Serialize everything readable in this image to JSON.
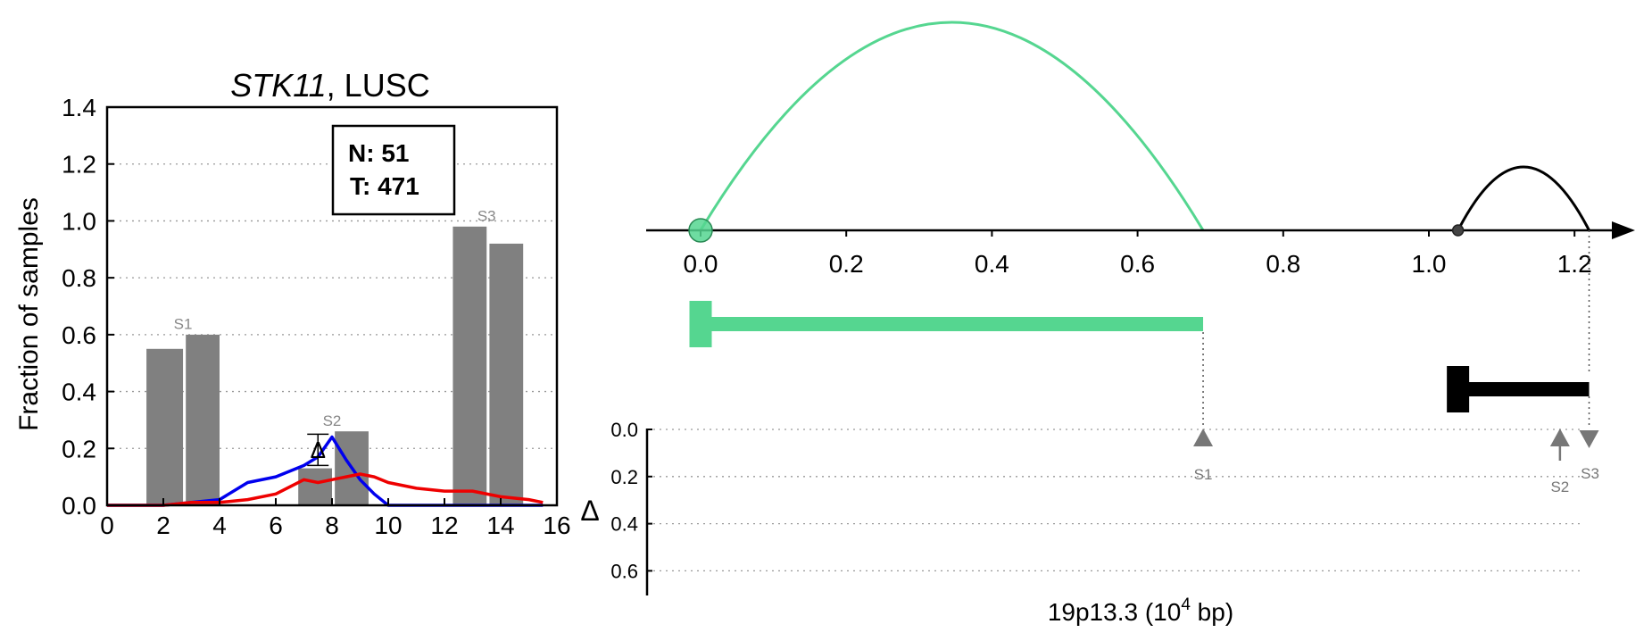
{
  "chart_data": [
    {
      "type": "bar",
      "title_gene": "STK11",
      "title_rest": ", LUSC",
      "ylabel": "Fraction of samples",
      "xlim": [
        0,
        16
      ],
      "ylim": [
        0,
        1.4
      ],
      "x_ticks": [
        "0",
        "2",
        "4",
        "6",
        "8",
        "10",
        "12",
        "14",
        "16"
      ],
      "y_ticks": [
        "0.0",
        "0.2",
        "0.4",
        "0.6",
        "0.8",
        "1.0",
        "1.2",
        "1.4"
      ],
      "grid": "horizontal dotted",
      "legend_box": {
        "line1": "N: 51",
        "line2": "T: 471"
      },
      "bars": [
        {
          "x_left": 1.4,
          "x_right": 2.7,
          "value": 0.55
        },
        {
          "x_left": 2.8,
          "x_right": 4.0,
          "value": 0.6
        },
        {
          "x_left": 6.8,
          "x_right": 8.0,
          "value": 0.13
        },
        {
          "x_left": 8.1,
          "x_right": 9.3,
          "value": 0.26
        },
        {
          "x_left": 12.3,
          "x_right": 13.5,
          "value": 0.98
        },
        {
          "x_left": 13.6,
          "x_right": 14.8,
          "value": 0.92
        }
      ],
      "bar_labels": [
        {
          "text": "S1",
          "x": 2.7,
          "y": 0.62
        },
        {
          "text": "S2",
          "x": 8.0,
          "y": 0.28
        },
        {
          "text": "S3",
          "x": 13.5,
          "y": 1.0
        }
      ],
      "series": [
        {
          "color": "#0000ee",
          "x": [
            0,
            1,
            2,
            3,
            4,
            5,
            6,
            7,
            7.5,
            8,
            8.5,
            9,
            9.5,
            10,
            11,
            12,
            13,
            14,
            15,
            15.5
          ],
          "y": [
            0,
            0,
            0,
            0.01,
            0.02,
            0.08,
            0.1,
            0.14,
            0.17,
            0.24,
            0.16,
            0.09,
            0.04,
            0,
            0,
            0,
            0,
            0,
            0,
            0
          ]
        },
        {
          "color": "#ee0000",
          "x": [
            0,
            1,
            2,
            3,
            4,
            5,
            6,
            7,
            7.5,
            8,
            8.5,
            9,
            9.5,
            10,
            11,
            12,
            13,
            14,
            15,
            15.5
          ],
          "y": [
            0,
            0,
            0,
            0.01,
            0.01,
            0.02,
            0.04,
            0.09,
            0.08,
            0.09,
            0.1,
            0.11,
            0.1,
            0.08,
            0.06,
            0.05,
            0.05,
            0.03,
            0.02,
            0.01
          ]
        }
      ],
      "delta_annotation": {
        "symbol": "Δ",
        "x": 7.5,
        "y_low": 0.14,
        "y_high": 0.25
      }
    },
    {
      "type": "line",
      "xlabel_main": "19p13.3 (10",
      "xlabel_sup": "4",
      "xlabel_tail": " bp)",
      "x_ticks": [
        "0.0",
        "0.2",
        "0.4",
        "0.6",
        "0.8",
        "1.0",
        "1.2"
      ],
      "ylabel": "Δ",
      "delta_ticks": [
        "0.0",
        "0.2",
        "0.4",
        "0.6"
      ],
      "delta_grid": "horizontal dotted",
      "arcs": [
        {
          "from": 0.0,
          "to": 0.69,
          "color": "#55d690",
          "height": "tall"
        },
        {
          "from": 1.04,
          "to": 1.22,
          "color": "#000000",
          "height": "short"
        }
      ],
      "points": [
        {
          "x": 0.0,
          "color": "#55d690"
        },
        {
          "x": 1.04,
          "color": "#444444"
        }
      ],
      "segments": [
        {
          "from": 0.0,
          "to": 0.69,
          "color": "#55d690",
          "row": "upper"
        },
        {
          "from": 1.04,
          "to": 1.22,
          "color": "#000000",
          "row": "lower"
        }
      ],
      "markers": [
        {
          "label": "S1",
          "x": 0.69,
          "delta": 0.0,
          "shape": "up-triangle"
        },
        {
          "label": "S2",
          "x": 1.18,
          "delta": 0.0,
          "shape": "up-arrow"
        },
        {
          "label": "S3",
          "x": 1.22,
          "delta": 0.0,
          "shape": "down-triangle"
        }
      ],
      "colors": {
        "accent_green": "#55d690",
        "marker_gray": "#777777",
        "bar_gray": "#808080"
      }
    }
  ]
}
